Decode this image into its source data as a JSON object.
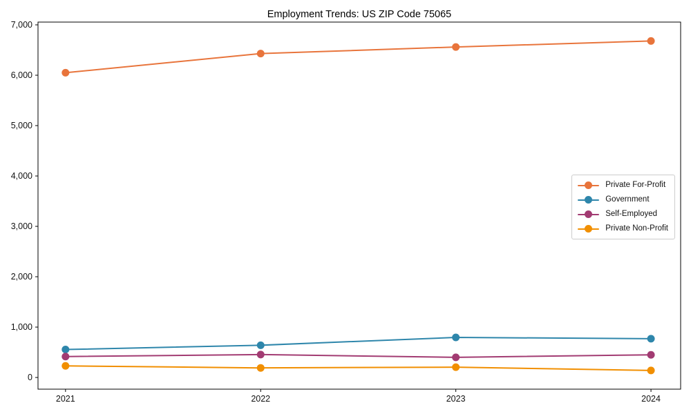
{
  "chart_data": {
    "type": "line",
    "title": "Employment Trends: US ZIP Code 75065",
    "xlabel": "",
    "ylabel": "",
    "x": [
      2021,
      2022,
      2023,
      2024
    ],
    "xtick_labels": [
      "2021",
      "2022",
      "2023",
      "2024"
    ],
    "yticks": [
      {
        "value": 0,
        "label": "0"
      },
      {
        "value": 1000,
        "label": "1,000"
      },
      {
        "value": 2000,
        "label": "2,000"
      },
      {
        "value": 3000,
        "label": "3,000"
      },
      {
        "value": 4000,
        "label": "4,000"
      },
      {
        "value": 5000,
        "label": "5,000"
      },
      {
        "value": 6000,
        "label": "6,000"
      },
      {
        "value": 7000,
        "label": "7,000"
      }
    ],
    "xlim": [
      2020.859,
      2024.152
    ],
    "ylim": [
      -232,
      7055
    ],
    "grid": false,
    "legend_position": "center-right",
    "series": [
      {
        "name": "Private For-Profit",
        "color": "#E8743B",
        "values": [
          6050,
          6430,
          6560,
          6680
        ]
      },
      {
        "name": "Government",
        "color": "#2E86AB",
        "values": [
          555,
          640,
          795,
          770
        ]
      },
      {
        "name": "Self-Employed",
        "color": "#A23B72",
        "values": [
          415,
          455,
          400,
          450
        ]
      },
      {
        "name": "Private Non-Profit",
        "color": "#F18F01",
        "values": [
          230,
          190,
          205,
          140
        ]
      }
    ]
  }
}
